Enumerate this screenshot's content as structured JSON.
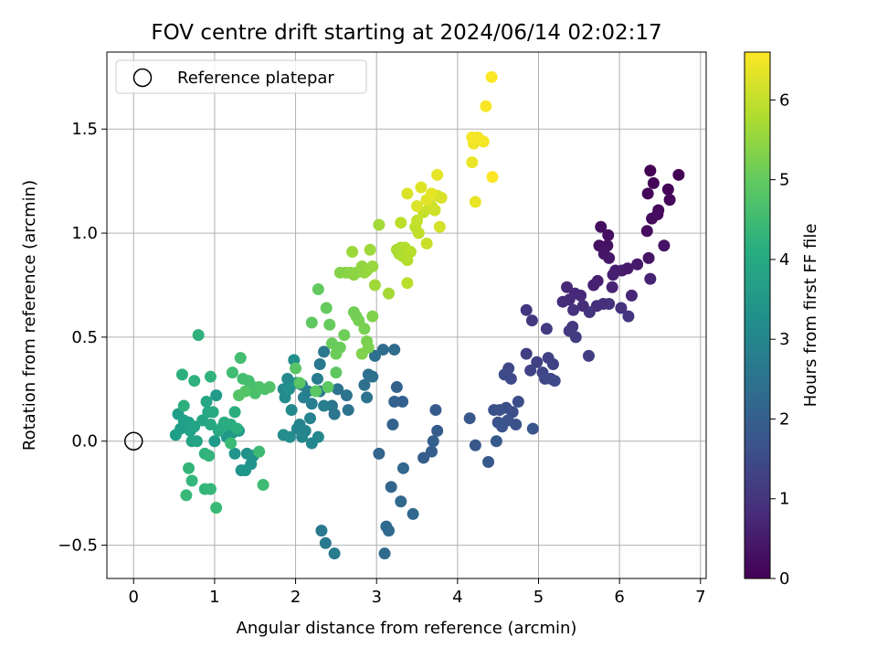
{
  "chart_data": {
    "type": "scatter",
    "title": "FOV centre drift starting at 2024/06/14 02:02:17",
    "xlabel": "Angular distance from reference (arcmin)",
    "ylabel": "Rotation from reference (arcmin)",
    "xlim": [
      -0.33,
      7.07
    ],
    "ylim": [
      -0.66,
      1.87
    ],
    "xticks": [
      "0",
      "1",
      "2",
      "3",
      "4",
      "5",
      "6",
      "7"
    ],
    "xtick_values": [
      0,
      1,
      2,
      3,
      4,
      5,
      6,
      7
    ],
    "yticks": [
      "−0.5",
      "0.0",
      "0.5",
      "1.0",
      "1.5"
    ],
    "ytick_values": [
      -0.5,
      0,
      0.5,
      1.0,
      1.5
    ],
    "grid": true,
    "legend": {
      "position": "top-left",
      "entries": [
        "Reference platepar"
      ]
    },
    "reference_point": {
      "x": 0,
      "y": 0
    },
    "colorbar": {
      "label": "Hours from first FF file",
      "colormap": "viridis",
      "range": [
        0,
        6.6
      ],
      "ticks": [
        "0",
        "1",
        "2",
        "3",
        "4",
        "5",
        "6"
      ],
      "tick_values": [
        0,
        1,
        2,
        3,
        4,
        5,
        6
      ]
    },
    "series": [
      {
        "points": [
          [
            6.38,
            1.3
          ],
          [
            6.73,
            1.28
          ],
          [
            6.42,
            1.24
          ],
          [
            6.6,
            1.21
          ],
          [
            6.35,
            1.19
          ],
          [
            6.62,
            1.16
          ],
          [
            6.48,
            1.11
          ],
          [
            6.47,
            1.09
          ],
          [
            6.4,
            1.07
          ],
          [
            6.34,
            1.01
          ],
          [
            5.77,
            1.03
          ],
          [
            5.86,
            0.99
          ],
          [
            5.75,
            0.94
          ],
          [
            5.85,
            0.94
          ],
          [
            6.55,
            0.94
          ],
          [
            6.36,
            0.88
          ],
          [
            5.81,
            0.9
          ],
          [
            5.87,
            0.88
          ],
          [
            6.22,
            0.85
          ],
          [
            6.1,
            0.83
          ],
          [
            6.03,
            0.82
          ],
          [
            5.95,
            0.82
          ],
          [
            5.92,
            0.8
          ],
          [
            5.73,
            0.77
          ],
          [
            5.68,
            0.75
          ],
          [
            6.38,
            0.78
          ],
          [
            5.91,
            0.74
          ],
          [
            6.15,
            0.7
          ],
          [
            5.35,
            0.74
          ],
          [
            5.45,
            0.71
          ],
          [
            5.52,
            0.7
          ],
          [
            5.38,
            0.68
          ],
          [
            5.3,
            0.67
          ],
          [
            5.55,
            0.65
          ],
          [
            5.72,
            0.65
          ],
          [
            5.8,
            0.66
          ],
          [
            5.87,
            0.66
          ],
          [
            6.02,
            0.64
          ],
          [
            5.43,
            0.63
          ],
          [
            5.63,
            0.62
          ],
          [
            6.11,
            0.6
          ],
          [
            4.85,
            0.63
          ],
          [
            4.92,
            0.58
          ],
          [
            5.42,
            0.55
          ],
          [
            5.38,
            0.53
          ],
          [
            5.1,
            0.54
          ],
          [
            5.46,
            0.5
          ],
          [
            5.62,
            0.41
          ],
          [
            4.85,
            0.42
          ],
          [
            4.98,
            0.38
          ],
          [
            5.12,
            0.4
          ],
          [
            5.18,
            0.37
          ],
          [
            4.9,
            0.34
          ],
          [
            5.05,
            0.33
          ],
          [
            5.15,
            0.3
          ],
          [
            4.63,
            0.35
          ],
          [
            5.2,
            0.29
          ],
          [
            5.08,
            0.3
          ],
          [
            4.66,
            0.3
          ],
          [
            4.58,
            0.32
          ],
          [
            4.75,
            0.19
          ],
          [
            4.6,
            0.16
          ],
          [
            4.68,
            0.14
          ],
          [
            4.52,
            0.15
          ],
          [
            4.45,
            0.15
          ],
          [
            4.62,
            0.1
          ],
          [
            4.5,
            0.09
          ],
          [
            4.72,
            0.08
          ],
          [
            4.55,
            0.07
          ],
          [
            4.93,
            0.06
          ]
        ]
      },
      {
        "points": [
          [
            4.15,
            0.11
          ],
          [
            4.22,
            -0.02
          ],
          [
            4.38,
            -0.1
          ],
          [
            4.48,
            0.0
          ],
          [
            3.73,
            0.15
          ],
          [
            3.75,
            0.05
          ],
          [
            3.58,
            -0.08
          ],
          [
            3.68,
            -0.05
          ],
          [
            3.7,
            0.0
          ],
          [
            3.32,
            0.19
          ],
          [
            3.22,
            0.19
          ],
          [
            3.25,
            0.26
          ],
          [
            3.2,
            0.08
          ],
          [
            3.03,
            -0.06
          ],
          [
            3.18,
            -0.22
          ],
          [
            3.33,
            -0.13
          ],
          [
            3.3,
            -0.29
          ],
          [
            3.45,
            -0.35
          ],
          [
            3.12,
            -0.41
          ],
          [
            3.15,
            -0.43
          ],
          [
            3.1,
            -0.54
          ],
          [
            3.22,
            0.44
          ],
          [
            3.08,
            0.44
          ],
          [
            2.98,
            0.41
          ],
          [
            2.9,
            0.32
          ],
          [
            2.85,
            0.27
          ],
          [
            2.95,
            0.31
          ],
          [
            2.88,
            0.21
          ],
          [
            2.63,
            0.22
          ],
          [
            2.65,
            0.15
          ],
          [
            2.52,
            0.25
          ],
          [
            2.45,
            0.17
          ],
          [
            2.48,
            0.13
          ],
          [
            2.35,
            0.43
          ],
          [
            2.3,
            0.37
          ],
          [
            2.32,
            -0.43
          ],
          [
            2.37,
            -0.49
          ],
          [
            2.48,
            -0.54
          ]
        ]
      },
      {
        "points": [
          [
            2.27,
            0.3
          ],
          [
            2.3,
            0.24
          ],
          [
            2.15,
            0.24
          ],
          [
            2.2,
            0.18
          ],
          [
            2.35,
            0.17
          ],
          [
            2.08,
            0.27
          ],
          [
            2.1,
            0.21
          ],
          [
            2.18,
            0.11
          ],
          [
            2.05,
            0.08
          ],
          [
            2.02,
            0.06
          ],
          [
            2.12,
            0.05
          ],
          [
            2.08,
            0.02
          ],
          [
            2.2,
            -0.01
          ],
          [
            2.28,
            0.02
          ],
          [
            1.95,
            0.15
          ],
          [
            1.9,
            0.3
          ],
          [
            1.85,
            0.25
          ],
          [
            1.87,
            0.21
          ],
          [
            1.85,
            0.03
          ],
          [
            1.93,
            0.02
          ],
          [
            1.98,
            0.39
          ],
          [
            1.92,
            0.25
          ],
          [
            2.01,
            0.28
          ],
          [
            1.4,
            -0.06
          ],
          [
            1.45,
            -0.11
          ],
          [
            1.48,
            -0.07
          ],
          [
            1.33,
            -0.14
          ],
          [
            1.25,
            -0.06
          ],
          [
            1.38,
            -0.14
          ],
          [
            1.3,
            0.05
          ],
          [
            1.22,
            0.04
          ],
          [
            1.15,
            0.02
          ],
          [
            1.08,
            0.06
          ],
          [
            1.02,
            0.22
          ],
          [
            1.0,
            0.0
          ]
        ]
      },
      {
        "points": [
          [
            0.55,
            0.13
          ],
          [
            0.52,
            0.03
          ],
          [
            0.58,
            0.06
          ],
          [
            0.62,
            0.1
          ],
          [
            0.68,
            0.09
          ],
          [
            0.7,
            0.05
          ],
          [
            0.72,
            0.0
          ],
          [
            0.75,
            0.07
          ],
          [
            0.78,
            0.0
          ],
          [
            0.85,
            0.1
          ],
          [
            0.9,
            0.19
          ],
          [
            0.92,
            0.14
          ],
          [
            0.95,
            0.08
          ],
          [
            0.98,
            0.14
          ],
          [
            1.05,
            0.05
          ],
          [
            1.1,
            0.07
          ],
          [
            1.12,
            0.09
          ],
          [
            1.2,
            0.08
          ],
          [
            1.25,
            0.14
          ],
          [
            1.28,
            0.06
          ],
          [
            0.62,
            0.17
          ],
          [
            0.6,
            0.32
          ],
          [
            0.75,
            0.29
          ],
          [
            0.8,
            0.51
          ],
          [
            0.95,
            0.31
          ],
          [
            0.88,
            -0.06
          ],
          [
            0.93,
            -0.07
          ],
          [
            0.68,
            -0.13
          ],
          [
            0.72,
            -0.19
          ],
          [
            0.88,
            -0.23
          ],
          [
            0.95,
            -0.23
          ],
          [
            0.65,
            -0.26
          ],
          [
            1.02,
            -0.32
          ],
          [
            1.2,
            -0.01
          ],
          [
            1.55,
            -0.05
          ],
          [
            1.6,
            -0.21
          ],
          [
            1.22,
            0.33
          ],
          [
            1.32,
            0.4
          ],
          [
            1.35,
            0.3
          ],
          [
            1.42,
            0.29
          ],
          [
            1.48,
            0.26
          ],
          [
            1.5,
            0.23
          ],
          [
            1.55,
            0.26
          ],
          [
            1.62,
            0.25
          ],
          [
            1.68,
            0.26
          ],
          [
            1.38,
            0.24
          ],
          [
            1.3,
            0.22
          ]
        ]
      },
      {
        "points": [
          [
            2.0,
            0.35
          ],
          [
            2.05,
            0.28
          ],
          [
            2.25,
            0.24
          ],
          [
            2.4,
            0.26
          ],
          [
            2.5,
            0.33
          ],
          [
            2.2,
            0.57
          ],
          [
            2.28,
            0.73
          ],
          [
            2.38,
            0.64
          ],
          [
            2.42,
            0.56
          ],
          [
            2.45,
            0.47
          ],
          [
            2.55,
            0.45
          ],
          [
            2.5,
            0.42
          ],
          [
            2.6,
            0.51
          ],
          [
            2.72,
            0.62
          ],
          [
            2.75,
            0.6
          ],
          [
            2.78,
            0.58
          ],
          [
            2.85,
            0.54
          ],
          [
            2.88,
            0.48
          ],
          [
            2.9,
            0.45
          ],
          [
            2.82,
            0.42
          ],
          [
            2.95,
            0.6
          ],
          [
            2.55,
            0.81
          ],
          [
            2.62,
            0.81
          ],
          [
            2.68,
            0.81
          ],
          [
            2.72,
            0.8
          ],
          [
            2.75,
            0.81
          ],
          [
            2.82,
            0.84
          ],
          [
            2.85,
            0.81
          ],
          [
            2.88,
            0.82
          ],
          [
            2.95,
            0.84
          ],
          [
            2.7,
            0.91
          ],
          [
            2.92,
            0.92
          ],
          [
            2.98,
            0.75
          ],
          [
            3.03,
            1.04
          ],
          [
            3.15,
            0.71
          ],
          [
            3.25,
            0.92
          ],
          [
            3.28,
            0.9
          ],
          [
            3.3,
            0.93
          ],
          [
            3.32,
            0.89
          ],
          [
            3.35,
            0.93
          ],
          [
            3.38,
            0.87
          ],
          [
            3.42,
            0.91
          ],
          [
            3.38,
            0.76
          ],
          [
            3.3,
            1.05
          ],
          [
            3.48,
            1.03
          ],
          [
            3.52,
            1.0
          ],
          [
            3.5,
            1.06
          ],
          [
            3.58,
            1.1
          ],
          [
            3.62,
            0.95
          ],
          [
            3.65,
            1.12
          ],
          [
            3.68,
            1.13
          ],
          [
            3.72,
            1.11
          ],
          [
            3.78,
            1.03
          ],
          [
            3.75,
            1.18
          ],
          [
            3.8,
            1.17
          ],
          [
            3.38,
            1.19
          ],
          [
            3.5,
            1.13
          ]
        ]
      },
      {
        "points": [
          [
            3.55,
            1.22
          ],
          [
            3.62,
            1.16
          ],
          [
            3.68,
            1.19
          ],
          [
            3.75,
            1.28
          ],
          [
            4.22,
            1.15
          ],
          [
            4.18,
            1.34
          ],
          [
            4.2,
            1.43
          ],
          [
            4.25,
            1.46
          ],
          [
            4.18,
            1.46
          ],
          [
            4.32,
            1.44
          ],
          [
            4.35,
            1.61
          ],
          [
            4.42,
            1.75
          ],
          [
            4.43,
            1.27
          ]
        ]
      }
    ]
  }
}
